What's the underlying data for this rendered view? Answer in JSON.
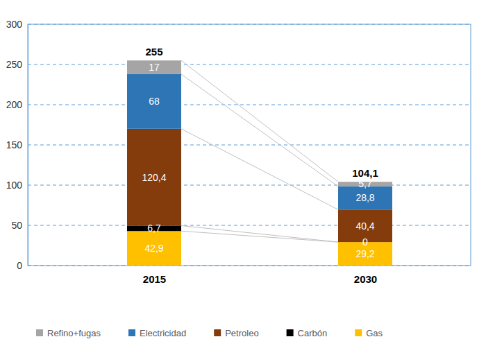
{
  "chart_data": {
    "type": "bar",
    "stacked": true,
    "data_labels": true,
    "grid": true,
    "legend": "bottom",
    "categories": [
      "2015",
      "2030"
    ],
    "series": [
      {
        "name": "Refino+fugas",
        "color": "#a5a5a5",
        "values": [
          17,
          5.7
        ],
        "value_labels": [
          "17",
          "5,7"
        ]
      },
      {
        "name": "Electricidad",
        "color": "#2e75b6",
        "values": [
          68,
          28.8
        ],
        "value_labels": [
          "68",
          "28,8"
        ]
      },
      {
        "name": "Petroleo",
        "color": "#843c0c",
        "values": [
          120.4,
          40.4
        ],
        "value_labels": [
          "120,4",
          "40,4"
        ]
      },
      {
        "name": "Carbón",
        "color": "#000000",
        "values": [
          6.7,
          0
        ],
        "value_labels": [
          "6,7",
          "0"
        ]
      },
      {
        "name": "Gas",
        "color": "#ffc000",
        "values": [
          42.9,
          29.2
        ],
        "value_labels": [
          "42,9",
          "29,2"
        ]
      }
    ],
    "totals": [
      255,
      104.1
    ],
    "total_labels": [
      "255",
      "104,1"
    ],
    "ylim": [
      0,
      300
    ],
    "yticks": [
      0,
      50,
      100,
      150,
      200,
      250,
      300
    ]
  }
}
